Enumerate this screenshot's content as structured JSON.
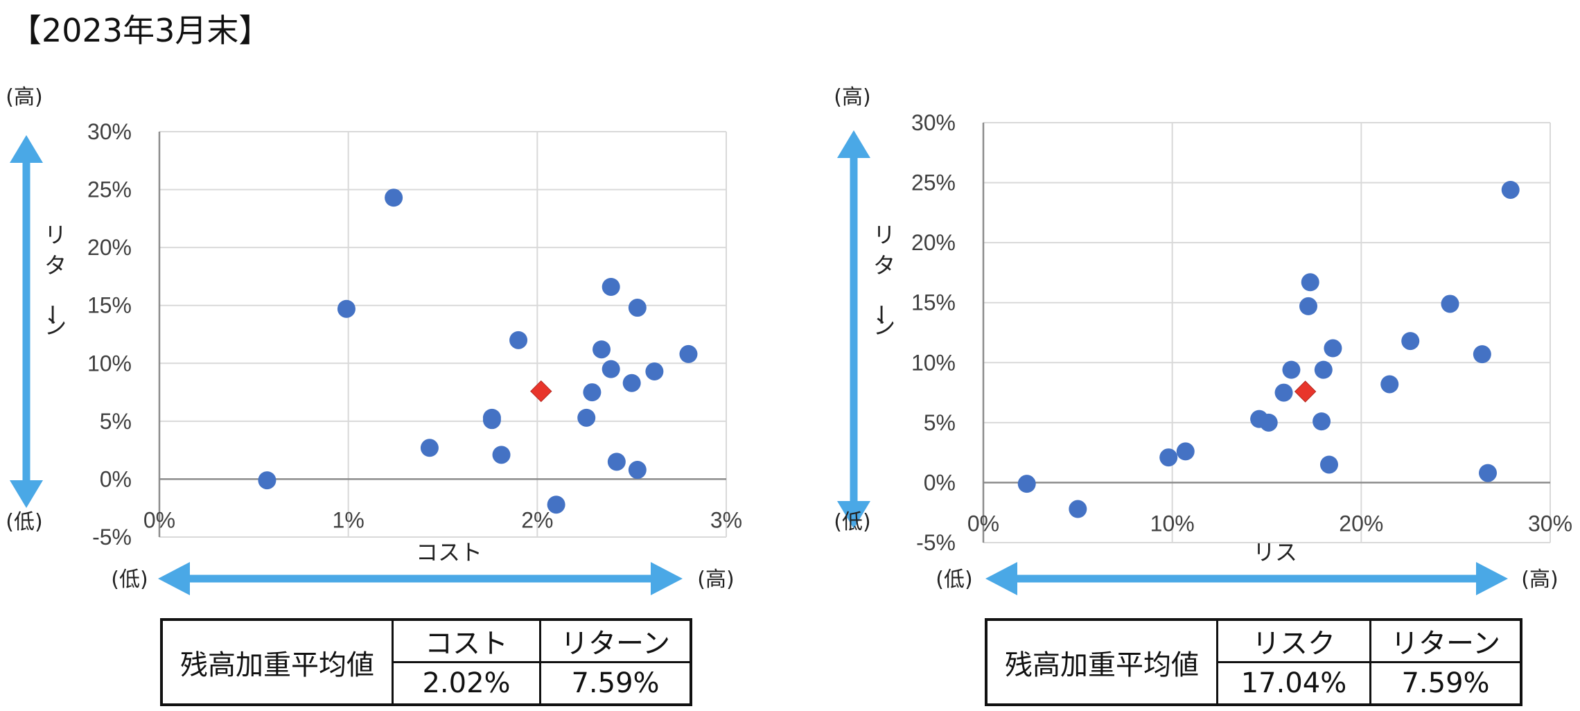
{
  "page_title": "【2023年3月末】",
  "colors": {
    "points": "#4472c4",
    "average_marker": "#e8352b",
    "arrow": "#4aa8e6",
    "grid": "#d9d9d9"
  },
  "chart_data": [
    {
      "type": "scatter",
      "xlabel": "コスト",
      "ylabel": "リターン",
      "x_tick_labels": [
        "0%",
        "1%",
        "2%",
        "3%"
      ],
      "y_tick_labels": [
        "30%",
        "25%",
        "20%",
        "15%",
        "10%",
        "5%",
        "0%",
        "-5%"
      ],
      "xlim": [
        0,
        3
      ],
      "ylim": [
        -5,
        30
      ],
      "x_unit": "%",
      "y_unit": "%",
      "high_label": "(高)",
      "low_label": "(低)",
      "points": [
        {
          "x": 0.57,
          "y": -0.1
        },
        {
          "x": 0.99,
          "y": 14.7
        },
        {
          "x": 1.24,
          "y": 24.3
        },
        {
          "x": 1.43,
          "y": 2.7
        },
        {
          "x": 1.76,
          "y": 5.1
        },
        {
          "x": 1.76,
          "y": 5.3
        },
        {
          "x": 1.81,
          "y": 2.1
        },
        {
          "x": 1.9,
          "y": 12.0
        },
        {
          "x": 2.1,
          "y": -2.2
        },
        {
          "x": 2.26,
          "y": 5.3
        },
        {
          "x": 2.29,
          "y": 7.5
        },
        {
          "x": 2.34,
          "y": 11.2
        },
        {
          "x": 2.39,
          "y": 16.6
        },
        {
          "x": 2.39,
          "y": 9.5
        },
        {
          "x": 2.42,
          "y": 1.5
        },
        {
          "x": 2.5,
          "y": 8.3
        },
        {
          "x": 2.53,
          "y": 14.8
        },
        {
          "x": 2.53,
          "y": 0.8
        },
        {
          "x": 2.62,
          "y": 9.3
        },
        {
          "x": 2.8,
          "y": 10.8
        }
      ],
      "average": {
        "x": 2.02,
        "y": 7.59
      },
      "summary": {
        "label": "残高加重平均値",
        "col1_header": "コスト",
        "col2_header": "リターン",
        "col1_value": "2.02%",
        "col2_value": "7.59%"
      }
    },
    {
      "type": "scatter",
      "xlabel": "リス",
      "ylabel": "リターン",
      "x_tick_labels": [
        "0%",
        "10%",
        "20%",
        "30%"
      ],
      "y_tick_labels": [
        "30%",
        "25%",
        "20%",
        "15%",
        "10%",
        "5%",
        "0%",
        "-5%"
      ],
      "xlim": [
        0,
        30
      ],
      "ylim": [
        -5,
        30
      ],
      "x_unit": "%",
      "y_unit": "%",
      "high_label": "(高)",
      "low_label": "(低)",
      "points": [
        {
          "x": 2.3,
          "y": -0.1
        },
        {
          "x": 5.0,
          "y": -2.2
        },
        {
          "x": 9.8,
          "y": 2.1
        },
        {
          "x": 10.7,
          "y": 2.6
        },
        {
          "x": 14.6,
          "y": 5.3
        },
        {
          "x": 15.1,
          "y": 5.0
        },
        {
          "x": 15.9,
          "y": 7.5
        },
        {
          "x": 16.3,
          "y": 9.4
        },
        {
          "x": 17.2,
          "y": 14.7
        },
        {
          "x": 17.3,
          "y": 16.7
        },
        {
          "x": 17.9,
          "y": 5.1
        },
        {
          "x": 18.0,
          "y": 9.4
        },
        {
          "x": 18.3,
          "y": 1.5
        },
        {
          "x": 18.5,
          "y": 11.2
        },
        {
          "x": 21.5,
          "y": 8.2
        },
        {
          "x": 22.6,
          "y": 11.8
        },
        {
          "x": 24.7,
          "y": 14.9
        },
        {
          "x": 26.4,
          "y": 10.7
        },
        {
          "x": 26.7,
          "y": 0.8
        },
        {
          "x": 27.9,
          "y": 24.4
        }
      ],
      "average": {
        "x": 17.04,
        "y": 7.59
      },
      "summary": {
        "label": "残高加重平均値",
        "col1_header": "リスク",
        "col2_header": "リターン",
        "col1_value": "17.04%",
        "col2_value": "7.59%"
      }
    }
  ]
}
